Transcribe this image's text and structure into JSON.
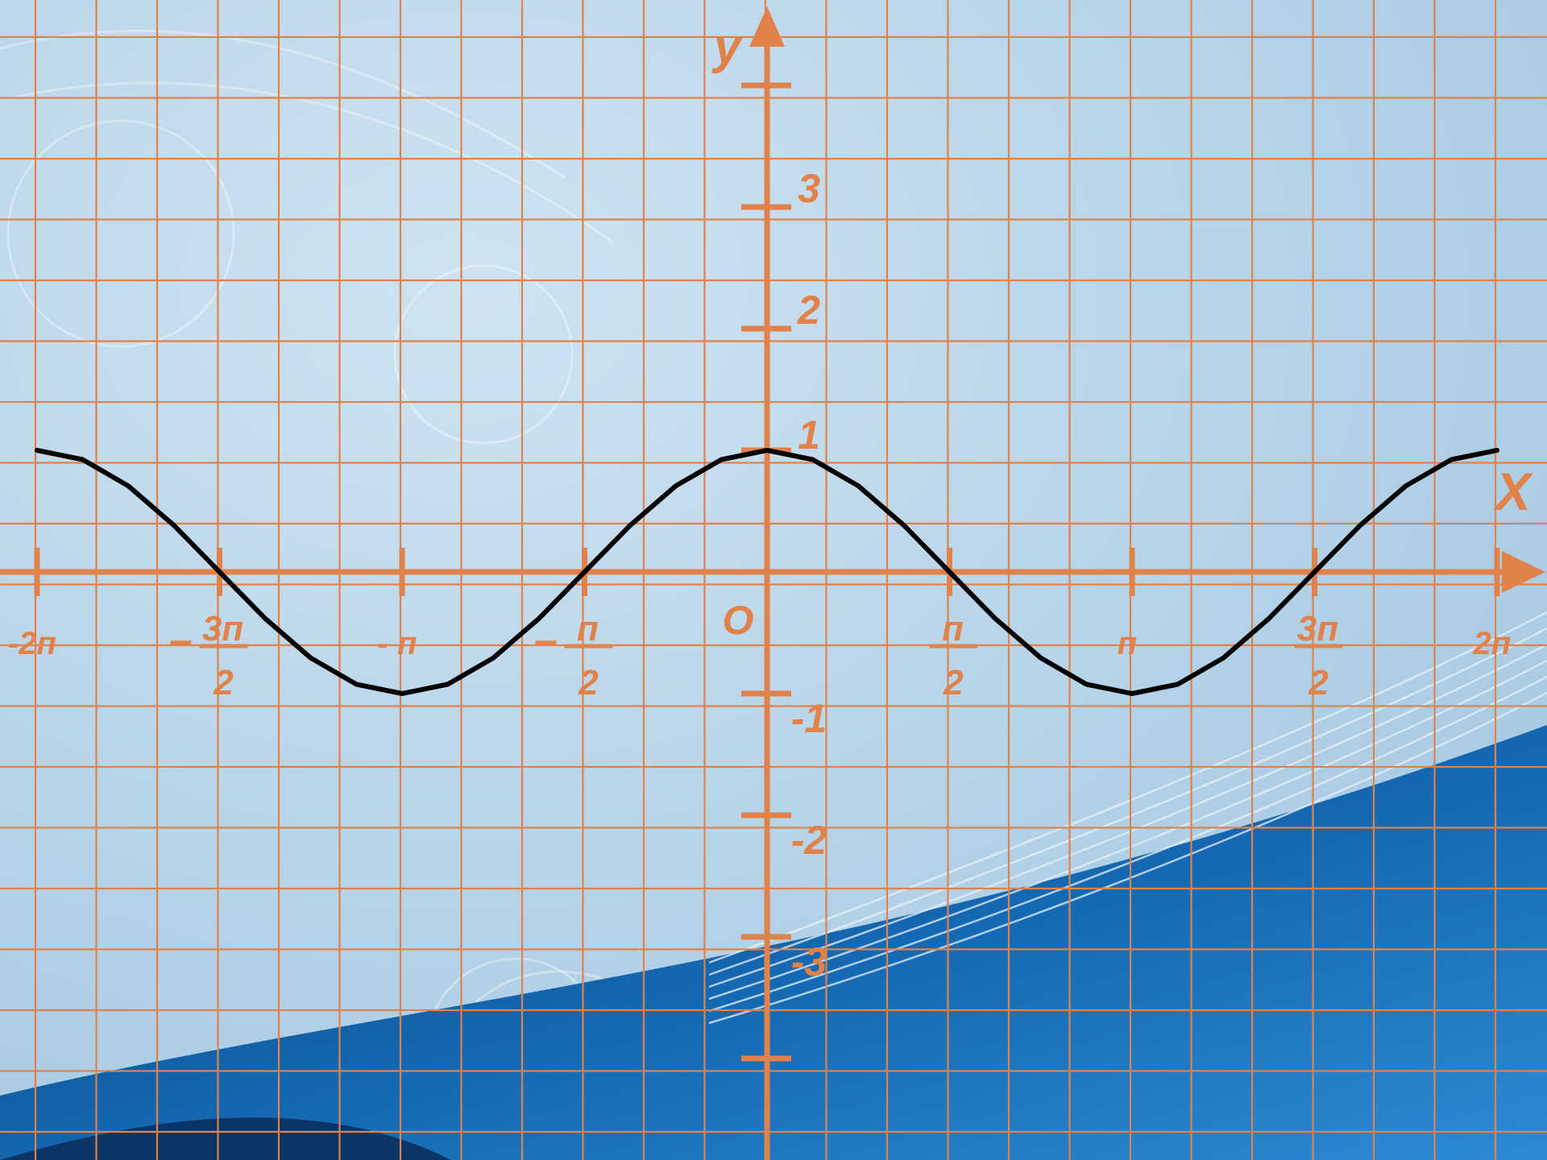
{
  "colors": {
    "background": "#b9d6ea",
    "grid": "#e0824a",
    "axis": "#e0824a",
    "curve": "#000000",
    "label": "#e0824a",
    "wave_dark": "#0d4f8e",
    "wave_mid": "#1e7bc4"
  },
  "chart_data": {
    "type": "line",
    "title": "",
    "xlabel": "X",
    "ylabel": "y",
    "origin_label": "O",
    "xlim": [
      -6.2832,
      6.2832
    ],
    "ylim": [
      -3,
      3
    ],
    "grid": true,
    "x_ticks": [
      {
        "value": -6.2832,
        "num": "-2п",
        "den": ""
      },
      {
        "value": -4.7124,
        "sign": "–",
        "num": "3п",
        "den": "2"
      },
      {
        "value": -3.1416,
        "num": "- п",
        "den": ""
      },
      {
        "value": -1.5708,
        "sign": "–",
        "num": "п",
        "den": "2"
      },
      {
        "value": 1.5708,
        "num": "п",
        "den": "2"
      },
      {
        "value": 3.1416,
        "num": "п",
        "den": ""
      },
      {
        "value": 4.7124,
        "num": "3п",
        "den": "2"
      },
      {
        "value": 6.2832,
        "num": "2п",
        "den": ""
      }
    ],
    "y_ticks": [
      {
        "value": 3,
        "label": "3"
      },
      {
        "value": 2,
        "label": "2"
      },
      {
        "value": 1,
        "label": "1"
      },
      {
        "value": -1,
        "label": "-1"
      },
      {
        "value": -2,
        "label": "-2"
      },
      {
        "value": -3,
        "label": "-3"
      }
    ],
    "y_ticks_unlabeled": [
      4,
      -4
    ],
    "series": [
      {
        "x": [
          -6.2832,
          -5.8905,
          -5.4978,
          -5.1051,
          -4.7124,
          -4.3197,
          -3.927,
          -3.5343,
          -3.1416,
          -2.7489,
          -2.3562,
          -1.9635,
          -1.5708,
          -1.1781,
          -0.7854,
          -0.3927,
          0,
          0.3927,
          0.7854,
          1.1781,
          1.5708,
          1.9635,
          2.3562,
          2.7489,
          3.1416,
          3.5343,
          3.927,
          4.3197,
          4.7124,
          5.1051,
          5.4978,
          5.8905,
          6.2832
        ],
        "y": [
          1,
          0.924,
          0.707,
          0.383,
          0,
          -0.383,
          -0.707,
          -0.924,
          -1,
          -0.924,
          -0.707,
          -0.383,
          0,
          0.383,
          0.707,
          0.924,
          1,
          0.924,
          0.707,
          0.383,
          0,
          -0.383,
          -0.707,
          -0.924,
          -1,
          -0.924,
          -0.707,
          -0.383,
          0,
          0.383,
          0.707,
          0.924,
          1
        ]
      }
    ]
  }
}
